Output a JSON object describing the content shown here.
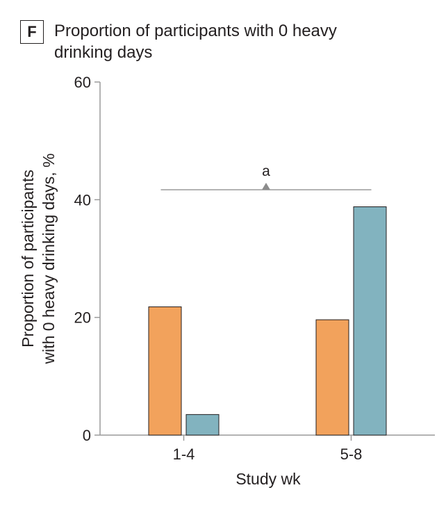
{
  "panel": {
    "letter": "F",
    "title": "Proportion of participants with 0 heavy drinking days"
  },
  "chart_data": {
    "type": "bar",
    "categories": [
      "1-4",
      "5-8"
    ],
    "series": [
      {
        "values": [
          21.8,
          19.6
        ],
        "color": "#f2a25c"
      },
      {
        "values": [
          3.5,
          38.8
        ],
        "color": "#82b3bf"
      }
    ],
    "xlabel": "Study wk",
    "ylabel_lines": [
      "Proportion of participants",
      "with 0 heavy drinking days, %"
    ],
    "ylim": [
      0,
      60
    ],
    "yticks": [
      0,
      20,
      40,
      60
    ],
    "grid": false,
    "annotations": [
      {
        "type": "significance-bracket",
        "label": "a",
        "between": [
          "1-4",
          "5-8"
        ],
        "y": 41.7
      }
    ]
  }
}
